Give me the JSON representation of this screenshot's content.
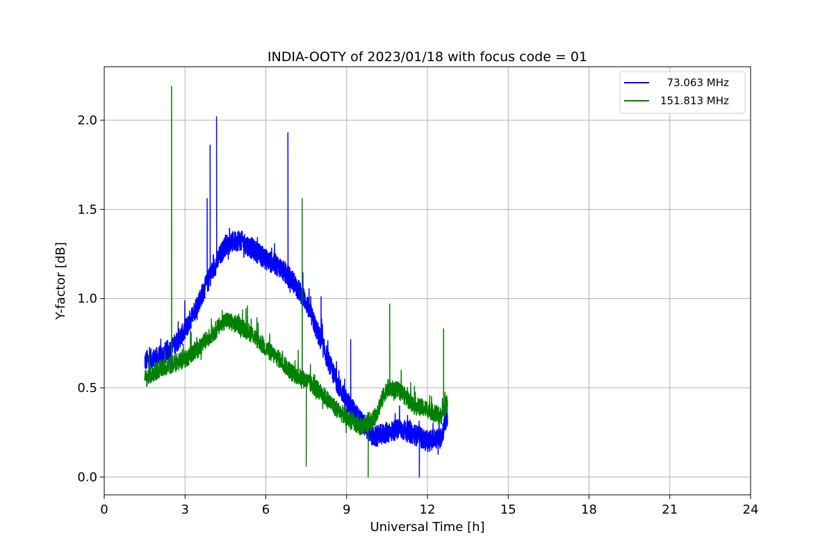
{
  "chart_data": {
    "type": "line",
    "title": "INDIA-OOTY of 2023/01/18 with focus code = 01",
    "xlabel": "Universal Time [h]",
    "ylabel": "Y-factor [dB]",
    "xlim": [
      0,
      24
    ],
    "ylim": [
      -0.1,
      2.3
    ],
    "xticks": [
      0,
      3,
      6,
      9,
      12,
      15,
      18,
      21,
      24
    ],
    "yticks": [
      0.0,
      0.5,
      1.0,
      1.5,
      2.0
    ],
    "xtick_labels": [
      "0",
      "3",
      "6",
      "9",
      "12",
      "15",
      "18",
      "21",
      "24"
    ],
    "ytick_labels": [
      "0.0",
      "0.5",
      "1.0",
      "1.5",
      "2.0"
    ],
    "grid": true,
    "legend_position": "top-right",
    "series": [
      {
        "name": "  73.063 MHz",
        "color": "#0000ff",
        "noise": 0.06,
        "x": [
          1.5,
          2.0,
          2.5,
          3.0,
          3.5,
          4.0,
          4.5,
          5.0,
          5.5,
          6.0,
          6.5,
          7.0,
          7.5,
          8.0,
          8.5,
          9.0,
          9.5,
          10.0,
          10.5,
          11.0,
          11.5,
          12.0,
          12.5,
          12.75
        ],
        "y": [
          0.65,
          0.67,
          0.72,
          0.82,
          0.98,
          1.15,
          1.3,
          1.33,
          1.28,
          1.22,
          1.18,
          1.1,
          0.98,
          0.78,
          0.58,
          0.42,
          0.32,
          0.22,
          0.25,
          0.27,
          0.24,
          0.2,
          0.22,
          0.35
        ],
        "spikes": [
          {
            "x": 3.82,
            "y": 1.56
          },
          {
            "x": 3.93,
            "y": 1.86
          },
          {
            "x": 4.17,
            "y": 2.02
          },
          {
            "x": 6.82,
            "y": 1.93
          },
          {
            "x": 8.05,
            "y": 1.01
          },
          {
            "x": 9.15,
            "y": 0.77
          },
          {
            "x": 11.7,
            "y": 0.0
          }
        ]
      },
      {
        "name": "151.813 MHz",
        "color": "#008000",
        "noise": 0.05,
        "x": [
          1.5,
          2.0,
          2.5,
          3.0,
          3.5,
          4.0,
          4.5,
          5.0,
          5.5,
          6.0,
          6.5,
          7.0,
          7.5,
          8.0,
          8.5,
          9.0,
          9.5,
          10.0,
          10.5,
          11.0,
          11.5,
          12.0,
          12.5,
          12.75
        ],
        "y": [
          0.55,
          0.6,
          0.63,
          0.66,
          0.72,
          0.8,
          0.88,
          0.85,
          0.8,
          0.72,
          0.66,
          0.58,
          0.54,
          0.48,
          0.4,
          0.33,
          0.28,
          0.32,
          0.5,
          0.48,
          0.4,
          0.38,
          0.34,
          0.42
        ],
        "spikes": [
          {
            "x": 2.5,
            "y": 2.19
          },
          {
            "x": 7.35,
            "y": 1.56
          },
          {
            "x": 7.5,
            "y": 0.06
          },
          {
            "x": 9.8,
            "y": 0.0
          },
          {
            "x": 10.6,
            "y": 0.97
          },
          {
            "x": 12.6,
            "y": 0.83
          }
        ]
      }
    ]
  }
}
